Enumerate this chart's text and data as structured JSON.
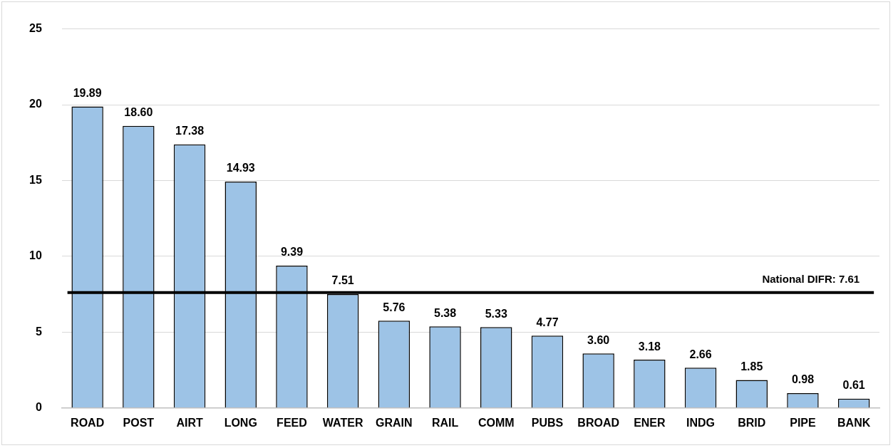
{
  "chart_data": {
    "type": "bar",
    "categories": [
      "ROAD",
      "POST",
      "AIRT",
      "LONG",
      "FEED",
      "WATER",
      "GRAIN",
      "RAIL",
      "COMM",
      "PUBS",
      "BROAD",
      "ENER",
      "INDG",
      "BRID",
      "PIPE",
      "BANK"
    ],
    "values": [
      19.89,
      18.6,
      17.38,
      14.93,
      9.39,
      7.51,
      5.76,
      5.38,
      5.33,
      4.77,
      3.6,
      3.18,
      2.66,
      1.85,
      0.98,
      0.61
    ],
    "color": "#9dc3e6",
    "value_labels": [
      "19.89",
      "18.60",
      "17.38",
      "14.93",
      "9.39",
      "7.51",
      "5.76",
      "5.38",
      "5.33",
      "4.77",
      "3.60",
      "3.18",
      "2.66",
      "1.85",
      "0.98",
      "0.61"
    ],
    "ylim": [
      0,
      25
    ],
    "yticks": [
      0,
      5,
      10,
      15,
      20,
      25
    ],
    "grid": "y",
    "ref_lines": [
      {
        "axis": "y",
        "value": 7.61,
        "label": "National DIFR: 7.61",
        "color": "#000000"
      }
    ]
  }
}
